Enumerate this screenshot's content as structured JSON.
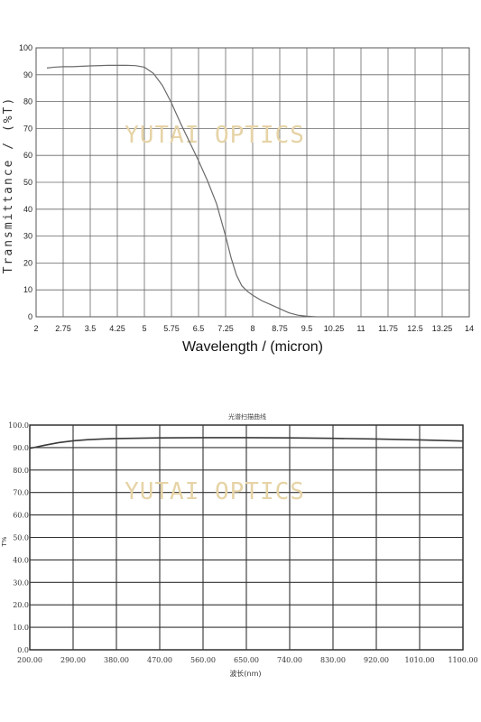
{
  "chart_data": [
    {
      "type": "line",
      "title": "",
      "xlabel": "Wavelength / (micron)",
      "ylabel": "Transmittance / (%T)",
      "watermark": "YUTAI OPTICS",
      "xlim": [
        2,
        14
      ],
      "ylim": [
        0,
        100
      ],
      "xticks": [
        "2",
        "2.75",
        "3.5",
        "4.25",
        "5",
        "5.75",
        "6.5",
        "7.25",
        "8",
        "8.75",
        "9.5",
        "10.25",
        "11",
        "11.75",
        "12.5",
        "13.25",
        "14"
      ],
      "yticks": [
        "0",
        "10",
        "20",
        "30",
        "40",
        "50",
        "60",
        "70",
        "80",
        "90",
        "100"
      ],
      "grid": true,
      "line_color": "#6a6a6a",
      "series": [
        {
          "x": [
            2.3,
            2.5,
            2.75,
            3.0,
            3.5,
            4.0,
            4.25,
            4.5,
            4.75,
            5.0,
            5.25,
            5.5,
            5.75,
            6.0,
            6.25,
            6.5,
            6.75,
            7.0,
            7.25,
            7.4,
            7.55,
            7.7,
            7.85,
            8.0,
            8.25,
            8.5,
            8.75,
            9.0,
            9.25,
            9.5,
            9.75
          ],
          "y": [
            92.5,
            92.8,
            93.0,
            93.0,
            93.3,
            93.5,
            93.5,
            93.5,
            93.4,
            92.8,
            90.5,
            86.0,
            79.5,
            72.0,
            65.0,
            58.0,
            50.5,
            42.0,
            30.0,
            22.0,
            15.5,
            11.5,
            9.5,
            8.0,
            6.0,
            4.5,
            3.0,
            1.5,
            0.6,
            0.2,
            0.0
          ]
        }
      ]
    },
    {
      "type": "line",
      "title": "光谱扫描曲线",
      "xlabel": "波长(nm)",
      "ylabel": "T%",
      "watermark": "YUTAI OPTICS",
      "xlim": [
        200,
        1100
      ],
      "ylim": [
        0,
        100
      ],
      "xticks": [
        "200.00",
        "290.00",
        "380.00",
        "470.00",
        "560.00",
        "650.00",
        "740.00",
        "830.00",
        "920.00",
        "1010.00",
        "1100.00"
      ],
      "yticks": [
        "0.0",
        "10.0",
        "20.0",
        "30.0",
        "40.0",
        "50.0",
        "60.0",
        "70.0",
        "80.0",
        "90.0",
        "100.0"
      ],
      "grid": true,
      "line_color": "#3a3a3a",
      "series": [
        {
          "x": [
            200,
            230,
            260,
            290,
            320,
            350,
            380,
            470,
            560,
            650,
            740,
            830,
            920,
            1010,
            1100
          ],
          "y": [
            89.6,
            91.0,
            92.2,
            93.0,
            93.5,
            93.8,
            94.0,
            94.3,
            94.4,
            94.4,
            94.3,
            94.1,
            93.8,
            93.4,
            92.9
          ]
        }
      ]
    }
  ]
}
